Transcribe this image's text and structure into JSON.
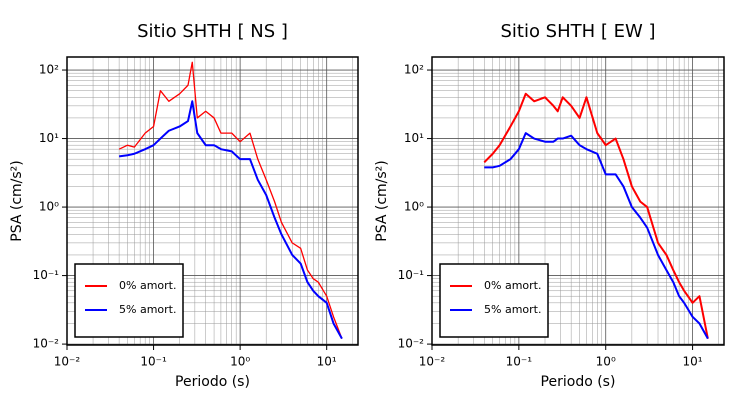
{
  "chart_data": [
    {
      "type": "line",
      "title": "Sitio SHTH [ NS ]",
      "xlabel": "Periodo (s)",
      "ylabel": "PSA (cm/s²)",
      "xscale": "log",
      "yscale": "log",
      "grid": true,
      "legend": "lower left",
      "xlim": [
        0.01,
        23
      ],
      "ylim": [
        0.0097,
        155
      ],
      "xticks": [
        {
          "value": 0.01,
          "label": "10⁻²"
        },
        {
          "value": 0.1,
          "label": "10⁻¹"
        },
        {
          "value": 1,
          "label": "10⁰"
        },
        {
          "value": 10,
          "label": "10¹"
        }
      ],
      "yticks": [
        {
          "value": 0.01,
          "label": "10⁻²"
        },
        {
          "value": 0.1,
          "label": "10⁻¹"
        },
        {
          "value": 1,
          "label": "10⁰"
        },
        {
          "value": 10,
          "label": "10¹"
        },
        {
          "value": 100,
          "label": "10²"
        }
      ],
      "x": [
        0.04,
        0.05,
        0.06,
        0.08,
        0.1,
        0.12,
        0.15,
        0.2,
        0.25,
        0.28,
        0.32,
        0.4,
        0.5,
        0.6,
        0.8,
        1,
        1.3,
        1.6,
        2,
        2.5,
        3,
        4,
        5,
        6,
        7,
        8,
        10,
        12,
        15
      ],
      "series": [
        {
          "name": "0% amort.",
          "color": "#ff0000",
          "width": 1.3,
          "values": [
            7,
            8,
            7.5,
            12,
            15,
            50,
            35,
            45,
            60,
            130,
            20,
            25,
            20,
            12,
            12,
            9,
            12,
            5,
            2.5,
            1.2,
            0.6,
            0.3,
            0.25,
            0.12,
            0.09,
            0.08,
            0.05,
            0.025,
            0.012
          ]
        },
        {
          "name": "5% amort.",
          "color": "#0000ff",
          "width": 2,
          "values": [
            5.5,
            5.7,
            6,
            7,
            8,
            10,
            13,
            15,
            18,
            35,
            12,
            8,
            8,
            7,
            6.5,
            5,
            5,
            2.5,
            1.5,
            0.7,
            0.4,
            0.2,
            0.15,
            0.08,
            0.06,
            0.05,
            0.04,
            0.02,
            0.012
          ]
        }
      ]
    },
    {
      "type": "line",
      "title": "Sitio SHTH [ EW ]",
      "xlabel": "Periodo (s)",
      "ylabel": "PSA (cm/s²)",
      "xscale": "log",
      "yscale": "log",
      "grid": true,
      "legend": "lower left",
      "xlim": [
        0.01,
        23
      ],
      "ylim": [
        0.0097,
        155
      ],
      "xticks": [
        {
          "value": 0.01,
          "label": "10⁻²"
        },
        {
          "value": 0.1,
          "label": "10⁻¹"
        },
        {
          "value": 1,
          "label": "10⁰"
        },
        {
          "value": 10,
          "label": "10¹"
        }
      ],
      "yticks": [
        {
          "value": 0.01,
          "label": "10⁻²"
        },
        {
          "value": 0.1,
          "label": "10⁻¹"
        },
        {
          "value": 1,
          "label": "10⁰"
        },
        {
          "value": 10,
          "label": "10¹"
        },
        {
          "value": 100,
          "label": "10²"
        }
      ],
      "x": [
        0.04,
        0.05,
        0.06,
        0.08,
        0.1,
        0.12,
        0.15,
        0.2,
        0.25,
        0.28,
        0.32,
        0.4,
        0.5,
        0.6,
        0.8,
        1,
        1.3,
        1.6,
        2,
        2.5,
        3,
        4,
        5,
        6,
        7,
        8,
        10,
        12,
        15
      ],
      "series": [
        {
          "name": "0% amort.",
          "color": "#ff0000",
          "width": 2,
          "values": [
            4.5,
            6,
            8,
            15,
            25,
            45,
            35,
            40,
            30,
            25,
            40,
            30,
            20,
            40,
            12,
            8,
            10,
            5,
            2,
            1.2,
            1,
            0.3,
            0.2,
            0.12,
            0.08,
            0.06,
            0.04,
            0.05,
            0.012
          ]
        },
        {
          "name": "5% amort.",
          "color": "#0000ff",
          "width": 2,
          "values": [
            3.8,
            3.8,
            4,
            5,
            7,
            12,
            10,
            9,
            9,
            10,
            10,
            11,
            8,
            7,
            6,
            3,
            3,
            2,
            1,
            0.7,
            0.5,
            0.2,
            0.12,
            0.08,
            0.05,
            0.04,
            0.025,
            0.02,
            0.012
          ]
        }
      ]
    }
  ]
}
